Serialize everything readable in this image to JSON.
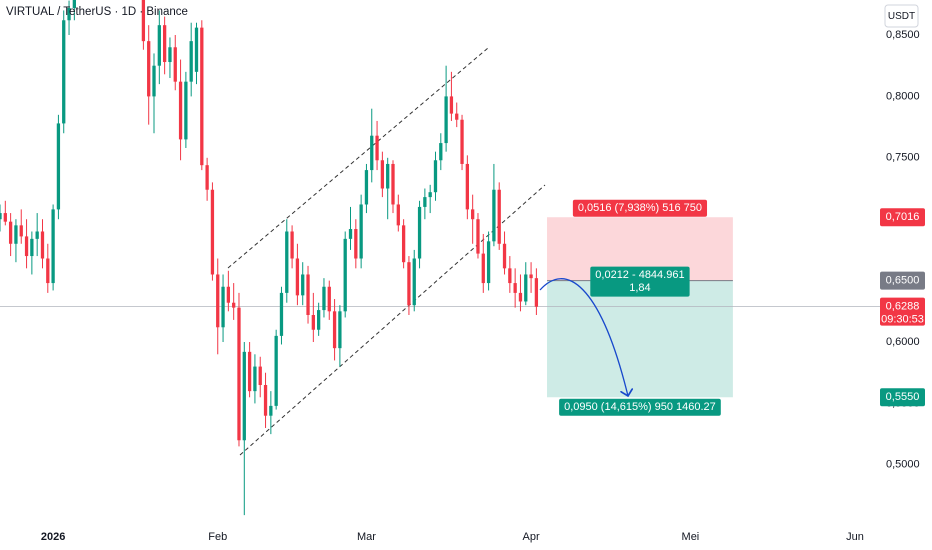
{
  "header": {
    "title": "VIRTUAL / TetherUS · 1D · Binance",
    "currency": "USDT"
  },
  "chart_data": {
    "type": "candlestick",
    "x": [
      -10,
      -9,
      -8,
      -7,
      -6,
      -5,
      -4,
      -3,
      -2,
      -1,
      0,
      1,
      2,
      3,
      4,
      17,
      18,
      19,
      20,
      21,
      22,
      23,
      24,
      25,
      26,
      27,
      28,
      29,
      30,
      31,
      32,
      33,
      34,
      35,
      36,
      37,
      38,
      39,
      40,
      41,
      42,
      43,
      44,
      45,
      46,
      47,
      48,
      49,
      50,
      51,
      52,
      53,
      54,
      55,
      56,
      57,
      58,
      59,
      60,
      61,
      62,
      63,
      64,
      65,
      66,
      67,
      68,
      69,
      70,
      71,
      72,
      73,
      74,
      75,
      76,
      77,
      78,
      79,
      80,
      81,
      82,
      83,
      84,
      85,
      86,
      87,
      88,
      89,
      90,
      91
    ],
    "open": [
      0.7,
      0.705,
      0.698,
      0.68,
      0.695,
      0.686,
      0.67,
      0.684,
      0.69,
      0.668,
      0.648,
      0.708,
      0.778,
      0.862,
      0.872,
      0.89,
      0.845,
      0.8,
      0.825,
      0.858,
      0.828,
      0.84,
      0.812,
      0.765,
      0.812,
      0.82,
      0.856,
      0.744,
      0.724,
      0.655,
      0.612,
      0.645,
      0.632,
      0.628,
      0.52,
      0.592,
      0.56,
      0.58,
      0.565,
      0.54,
      0.548,
      0.605,
      0.64,
      0.69,
      0.668,
      0.638,
      0.655,
      0.622,
      0.61,
      0.626,
      0.645,
      0.625,
      0.595,
      0.625,
      0.684,
      0.692,
      0.668,
      0.712,
      0.74,
      0.768,
      0.748,
      0.725,
      0.745,
      0.712,
      0.695,
      0.665,
      0.63,
      0.668,
      0.71,
      0.718,
      0.722,
      0.748,
      0.762,
      0.8,
      0.786,
      0.781,
      0.745,
      0.708,
      0.7,
      0.672,
      0.648,
      0.682,
      0.724,
      0.68,
      0.66,
      0.648,
      0.64,
      0.633,
      0.655,
      0.652
    ],
    "high": [
      0.712,
      0.715,
      0.705,
      0.7,
      0.708,
      0.7,
      0.69,
      0.705,
      0.7,
      0.68,
      0.712,
      0.785,
      0.87,
      0.878,
      0.885,
      0.895,
      0.858,
      0.835,
      0.87,
      0.865,
      0.848,
      0.85,
      0.83,
      0.82,
      0.86,
      0.86,
      0.862,
      0.75,
      0.73,
      0.668,
      0.655,
      0.658,
      0.648,
      0.64,
      0.6,
      0.6,
      0.59,
      0.588,
      0.575,
      0.56,
      0.61,
      0.645,
      0.7,
      0.695,
      0.68,
      0.665,
      0.662,
      0.64,
      0.632,
      0.652,
      0.65,
      0.635,
      0.63,
      0.69,
      0.71,
      0.7,
      0.72,
      0.745,
      0.79,
      0.78,
      0.755,
      0.75,
      0.748,
      0.72,
      0.7,
      0.67,
      0.675,
      0.715,
      0.725,
      0.728,
      0.755,
      0.77,
      0.825,
      0.82,
      0.795,
      0.785,
      0.752,
      0.72,
      0.705,
      0.688,
      0.69,
      0.745,
      0.73,
      0.69,
      0.67,
      0.66,
      0.655,
      0.665,
      0.665,
      0.66
    ],
    "low": [
      0.69,
      0.695,
      0.67,
      0.665,
      0.68,
      0.66,
      0.655,
      0.67,
      0.66,
      0.64,
      0.642,
      0.7,
      0.77,
      0.85,
      0.862,
      0.838,
      0.777,
      0.77,
      0.81,
      0.818,
      0.815,
      0.805,
      0.748,
      0.758,
      0.8,
      0.81,
      0.74,
      0.715,
      0.65,
      0.59,
      0.6,
      0.625,
      0.618,
      0.515,
      0.459,
      0.555,
      0.55,
      0.555,
      0.53,
      0.525,
      0.545,
      0.598,
      0.632,
      0.66,
      0.63,
      0.63,
      0.615,
      0.6,
      0.605,
      0.62,
      0.618,
      0.585,
      0.58,
      0.62,
      0.675,
      0.66,
      0.66,
      0.705,
      0.73,
      0.74,
      0.718,
      0.7,
      0.705,
      0.69,
      0.66,
      0.622,
      0.625,
      0.66,
      0.7,
      0.705,
      0.715,
      0.74,
      0.755,
      0.78,
      0.775,
      0.74,
      0.7,
      0.68,
      0.668,
      0.64,
      0.642,
      0.678,
      0.675,
      0.655,
      0.64,
      0.628,
      0.625,
      0.63,
      0.64,
      0.622
    ],
    "close": [
      0.705,
      0.698,
      0.68,
      0.695,
      0.686,
      0.67,
      0.684,
      0.69,
      0.668,
      0.648,
      0.708,
      0.778,
      0.862,
      0.872,
      0.88,
      0.845,
      0.8,
      0.825,
      0.858,
      0.828,
      0.84,
      0.812,
      0.765,
      0.812,
      0.845,
      0.856,
      0.744,
      0.724,
      0.655,
      0.612,
      0.645,
      0.632,
      0.628,
      0.52,
      0.592,
      0.56,
      0.58,
      0.565,
      0.54,
      0.548,
      0.605,
      0.64,
      0.69,
      0.668,
      0.638,
      0.655,
      0.622,
      0.61,
      0.626,
      0.645,
      0.625,
      0.595,
      0.625,
      0.684,
      0.692,
      0.668,
      0.712,
      0.74,
      0.768,
      0.748,
      0.725,
      0.745,
      0.712,
      0.695,
      0.665,
      0.63,
      0.668,
      0.71,
      0.718,
      0.722,
      0.748,
      0.762,
      0.8,
      0.786,
      0.781,
      0.745,
      0.708,
      0.7,
      0.672,
      0.648,
      0.682,
      0.724,
      0.68,
      0.66,
      0.648,
      0.64,
      0.633,
      0.655,
      0.652,
      0.6288
    ],
    "up_color": "#089981",
    "down_color": "#f23645",
    "xlim": [
      -10,
      155.7
    ],
    "ylim": [
      0.451,
      0.8785
    ],
    "xticks": [
      {
        "value": 0,
        "label": "2026"
      },
      {
        "value": 31,
        "label": "Feb"
      },
      {
        "value": 59,
        "label": "Mar"
      },
      {
        "value": 90,
        "label": "Apr"
      },
      {
        "value": 120,
        "label": "Mei"
      },
      {
        "value": 151,
        "label": "Jun"
      }
    ],
    "yticks": [
      {
        "value": 0.85,
        "label": "0,8500"
      },
      {
        "value": 0.8,
        "label": "0,8000"
      },
      {
        "value": 0.75,
        "label": "0,7500"
      },
      {
        "value": 0.6,
        "label": "0,6000"
      },
      {
        "value": 0.55,
        "label": "0,5500"
      },
      {
        "value": 0.5,
        "label": "0,5000"
      }
    ],
    "last_price": {
      "value": 0.6288,
      "label": "0,6288"
    },
    "countdown": "09:30:53",
    "position": {
      "stop": {
        "value": 0.7016,
        "label": "0,7016"
      },
      "entry": {
        "value": 0.65,
        "label": "0,6500"
      },
      "target": {
        "value": 0.555,
        "label": "0,5550"
      },
      "stop_text": "0,0516 (7,938%) 516 750",
      "entry_text": [
        "0,0212 - 4844.961",
        "1,84"
      ],
      "target_text": "0,0950 (14,615%) 950 1460.27",
      "stop_color": "#f23645",
      "entry_color": "#787b86",
      "target_color": "#089981"
    }
  }
}
